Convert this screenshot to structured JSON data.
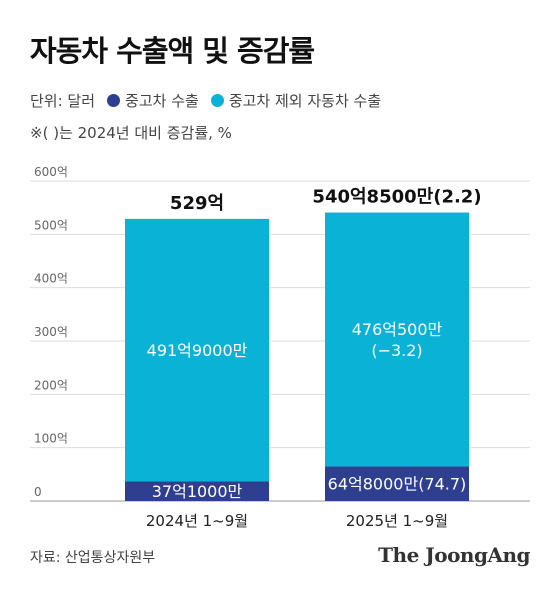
{
  "title": "자동차 수출액 및 증감률",
  "legend": {
    "unit": "단위: 달러",
    "items": [
      {
        "label": "중고차 수출",
        "color": "#2f3f8f"
      },
      {
        "label": "중고차 제외 자동차 수출",
        "color": "#0ab3d6"
      }
    ]
  },
  "note": "※( )는 2024년 대비 증감률, %",
  "chart_data": {
    "type": "bar",
    "stacked": true,
    "categories": [
      "2024년 1~9월",
      "2025년 1~9월"
    ],
    "ylim": [
      0,
      600
    ],
    "yticks": [
      "0",
      "100억",
      "200억",
      "300억",
      "400억",
      "500억",
      "600억"
    ],
    "series": [
      {
        "name": "중고차 수출",
        "color": "#2f3f8f",
        "values": [
          37.1,
          64.8
        ],
        "labels": [
          "37억1000만",
          "64억8000만(74.7)"
        ]
      },
      {
        "name": "중고차 제외 자동차 수출",
        "color": "#0ab3d6",
        "values": [
          491.9,
          476.05
        ],
        "labels": [
          "491억9000만",
          "476억500만\n(−3.2)"
        ]
      }
    ],
    "totals": {
      "values": [
        529,
        540.85
      ],
      "labels": [
        "529억",
        "540억8500만(2.2)"
      ]
    }
  },
  "source": "자료: 산업통상자원부",
  "brand": "The JoongAng"
}
